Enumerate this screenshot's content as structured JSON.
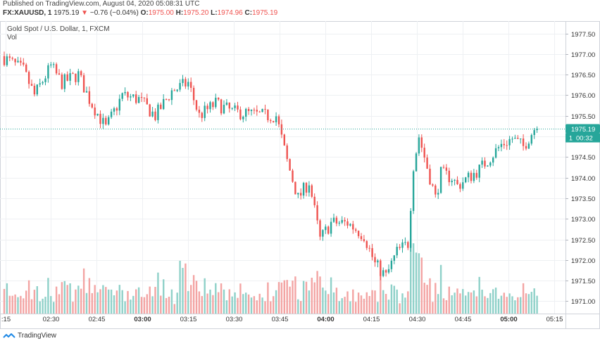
{
  "header": {
    "published": "Published on TradingView.com, August 04, 2020 05:08:31 UTC",
    "symbol": "FX:XAUUSD, 1",
    "last": "1975.19",
    "change_arrow": "▼",
    "change": "−0.76 (−0.04%)",
    "o_label": "O:",
    "o_value": "1975.00",
    "h_label": "H:",
    "h_value": "1975.20",
    "l_label": "L:",
    "l_value": "1974.96",
    "c_label": "C:",
    "c_value": "1975.19"
  },
  "overlay": {
    "title": "Gold Spot / U.S. Dollar, 1, FXCM",
    "volume_label": "Vol"
  },
  "price_badge": {
    "price": "1975.19",
    "prefix": "1",
    "countdown": "00:32"
  },
  "footer": {
    "brand": "TradingView",
    "logo_icon": "tradingview-logo-icon"
  },
  "colors": {
    "up": "#26a69a",
    "down": "#ef5350",
    "vol_up": "#8fd1c9",
    "vol_down": "#f3a4a3",
    "grid": "#eef0f3",
    "price_line": "#26a69a",
    "axis_text": "#333333"
  },
  "chart_data": {
    "type": "candlestick",
    "title": "Gold Spot / U.S. Dollar, 1, FXCM",
    "y_axis": {
      "ticks": [
        "1977.50",
        "1977.00",
        "1976.50",
        "1976.00",
        "1975.50",
        "1975.00",
        "1974.50",
        "1974.00",
        "1973.50",
        "1973.00",
        "1972.50",
        "1972.00",
        "1971.50",
        "1971.00"
      ],
      "range": [
        1970.7,
        1977.8
      ]
    },
    "x_axis": {
      "ticks": [
        ":15",
        "02:30",
        "02:45",
        "03:00",
        "03:15",
        "03:30",
        "03:45",
        "04:00",
        "04:15",
        "04:30",
        "04:45",
        "05:00",
        "05:15"
      ],
      "bold_ticks": [
        "03:00",
        "04:00",
        "05:00"
      ]
    },
    "last_price": 1975.19,
    "waypoints": [
      [
        0,
        1976.95
      ],
      [
        8,
        1976.6
      ],
      [
        12,
        1976.0
      ],
      [
        18,
        1976.7
      ],
      [
        22,
        1976.3
      ],
      [
        28,
        1976.5
      ],
      [
        32,
        1975.9
      ],
      [
        38,
        1975.2
      ],
      [
        44,
        1976.0
      ],
      [
        50,
        1975.9
      ],
      [
        56,
        1975.5
      ],
      [
        62,
        1976.1
      ],
      [
        68,
        1976.3
      ],
      [
        72,
        1975.5
      ],
      [
        78,
        1975.8
      ],
      [
        84,
        1975.6
      ],
      [
        90,
        1975.55
      ],
      [
        96,
        1975.5
      ],
      [
        100,
        1975.5
      ],
      [
        104,
        1974.4
      ],
      [
        108,
        1973.5
      ],
      [
        112,
        1973.9
      ],
      [
        116,
        1972.5
      ],
      [
        120,
        1972.9
      ],
      [
        126,
        1972.9
      ],
      [
        132,
        1972.6
      ],
      [
        136,
        1971.9
      ],
      [
        140,
        1971.6
      ],
      [
        144,
        1972.2
      ],
      [
        148,
        1972.4
      ],
      [
        150,
        1974.3
      ],
      [
        152,
        1975.0
      ],
      [
        154,
        1974.5
      ],
      [
        158,
        1973.5
      ],
      [
        160,
        1974.1
      ],
      [
        164,
        1974.0
      ],
      [
        166,
        1973.8
      ],
      [
        170,
        1974.0
      ],
      [
        174,
        1974.2
      ],
      [
        178,
        1974.5
      ],
      [
        182,
        1974.8
      ],
      [
        186,
        1974.95
      ],
      [
        190,
        1974.75
      ],
      [
        194,
        1975.19
      ]
    ],
    "volume_axis": {
      "range": [
        0,
        1
      ]
    }
  }
}
